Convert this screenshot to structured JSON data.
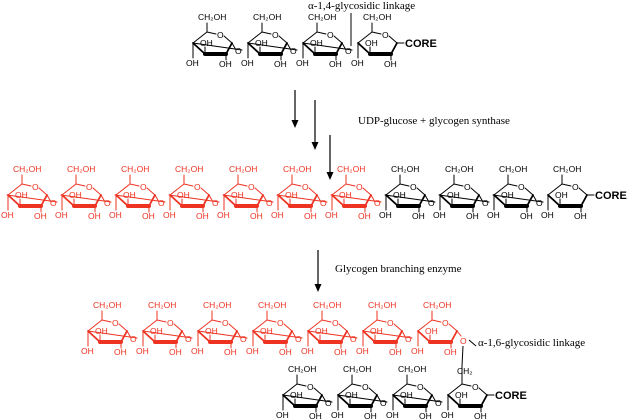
{
  "labels": {
    "alpha14": "α-1,4-glycosidic linkage",
    "step1": "UDP-glucose + glycogen synthase",
    "step2": "Glycogen branching enzyme",
    "alpha16": "α-1,6-glycosidic linkage",
    "core": "CORE"
  },
  "atoms": {
    "ch2oh": "CH₂OH",
    "ch2": "CH₂",
    "oh": "OH",
    "o": "O"
  },
  "colors": {
    "original": "#000000",
    "added": "#ee3322"
  },
  "structures": {
    "initial": {
      "original_units": 4
    },
    "elongated": {
      "added_units": 7,
      "original_units": 4
    },
    "branched": {
      "branch_added_units": 7,
      "main_original_units": 4
    }
  }
}
